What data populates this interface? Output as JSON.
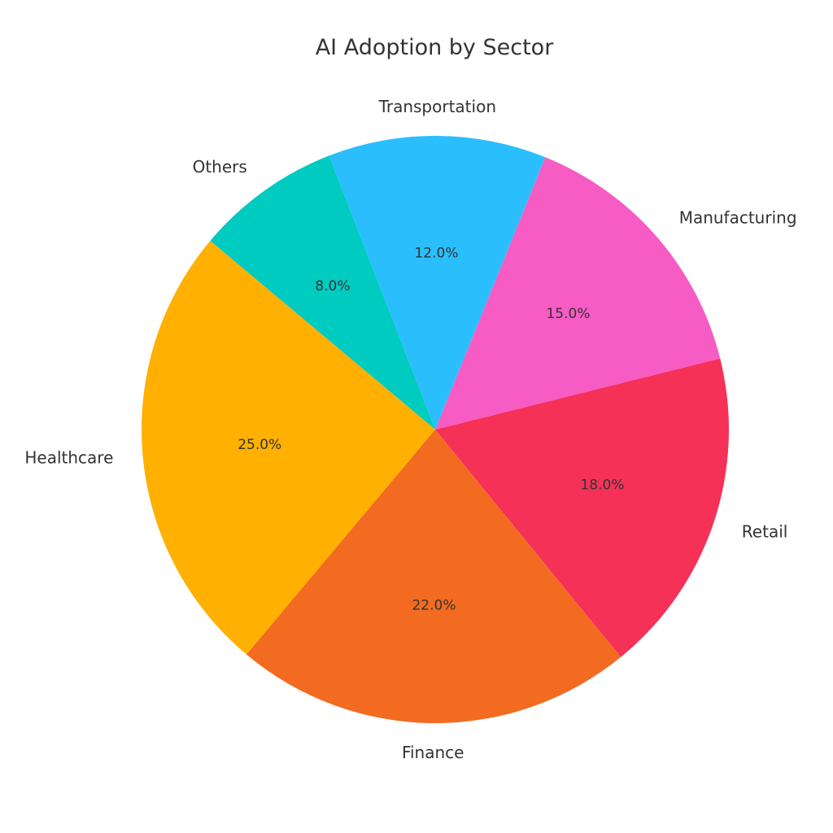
{
  "chart_data": {
    "type": "pie",
    "title": "AI Adoption by Sector",
    "slices": [
      {
        "label": "Healthcare",
        "value": 25.0,
        "pct_text": "25.0%",
        "color": "#FFB000"
      },
      {
        "label": "Finance",
        "value": 22.0,
        "pct_text": "22.0%",
        "color": "#F26B21"
      },
      {
        "label": "Retail",
        "value": 18.0,
        "pct_text": "18.0%",
        "color": "#F53157"
      },
      {
        "label": "Manufacturing",
        "value": 15.0,
        "pct_text": "15.0%",
        "color": "#F75BC4"
      },
      {
        "label": "Transportation",
        "value": 12.0,
        "pct_text": "12.0%",
        "color": "#2BBEFD"
      },
      {
        "label": "Others",
        "value": 8.0,
        "pct_text": "8.0%",
        "color": "#00CBC0"
      }
    ],
    "start_angle_deg": 140,
    "direction": "counterclockwise",
    "legend": "none"
  }
}
